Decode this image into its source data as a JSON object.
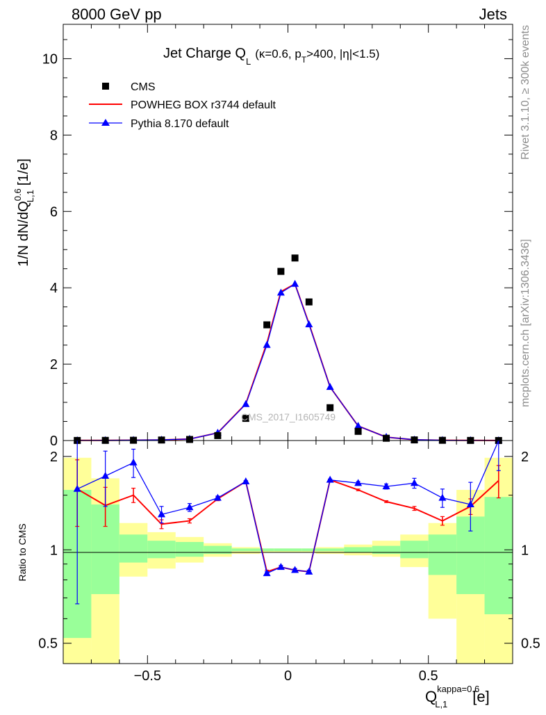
{
  "header": {
    "left": "8000 GeV pp",
    "right": "Jets"
  },
  "side_labels": {
    "top": "Rivet 3.1.10, ≥ 300k events",
    "bottom": "mcplots.cern.ch [arXiv:1306.3436]"
  },
  "watermark": "CMS_2017_I1605749",
  "colors": {
    "data": "#000000",
    "powheg": "#ff0000",
    "pythia": "#0000ff",
    "band_outer": "#ffff99",
    "band_inner": "#99ff99"
  },
  "chart_data": [
    {
      "type": "line",
      "panel": "main",
      "title_main": "Jet Charge Q",
      "title_sub": "L",
      "title_rest": "(κ=0.6, p",
      "title_rest_sub": "T",
      "title_tail": ">400, |η|<1.5)",
      "ylabel": "1/N dN/dQ",
      "ylabel_sup": "0.6",
      "ylabel_sub": "L,1",
      "ylabel_unit": "[1/e]",
      "xlim": [
        -0.8,
        0.8
      ],
      "ylim": [
        0,
        10.9
      ],
      "yticks": [
        0,
        2,
        4,
        6,
        8,
        10
      ],
      "grid": false,
      "legend_position": "top-left",
      "x": [
        -0.75,
        -0.65,
        -0.55,
        -0.45,
        -0.35,
        -0.25,
        -0.15,
        -0.075,
        -0.025,
        0.025,
        0.075,
        0.15,
        0.25,
        0.35,
        0.45,
        0.55,
        0.65,
        0.75
      ],
      "series": [
        {
          "name": "CMS",
          "style": "markers",
          "values": [
            0.002,
            0.004,
            0.007,
            0.013,
            0.028,
            0.13,
            0.58,
            3.03,
            4.43,
            4.78,
            3.63,
            0.86,
            0.24,
            0.06,
            0.016,
            0.006,
            0.003,
            0.001
          ]
        },
        {
          "name": "POWHEG BOX r3744 default",
          "style": "line",
          "values": [
            0.003,
            0.006,
            0.01,
            0.017,
            0.04,
            0.2,
            0.96,
            2.55,
            3.9,
            4.1,
            3.06,
            1.4,
            0.38,
            0.09,
            0.02,
            0.008,
            0.004,
            0.002
          ]
        },
        {
          "name": "Pythia 8.170 default",
          "style": "line-triangles",
          "values": [
            0.003,
            0.006,
            0.011,
            0.018,
            0.04,
            0.2,
            0.95,
            2.5,
            3.87,
            4.1,
            3.04,
            1.4,
            0.38,
            0.09,
            0.021,
            0.008,
            0.004,
            0.002
          ]
        }
      ]
    },
    {
      "type": "line",
      "panel": "ratio",
      "ylabel": "Ratio to CMS",
      "xlabel": "Q",
      "xlabel_sup": "kappa=0.6",
      "xlabel_sub": "L,1",
      "xlabel_unit": "[e]",
      "xlim": [
        -0.8,
        0.8
      ],
      "ylim": [
        0.43,
        2.25
      ],
      "ylog": true,
      "yticks": [
        0.5,
        1,
        2
      ],
      "ytick_labels": [
        "0.5",
        "1",
        "2"
      ],
      "xticks": [
        -0.5,
        0,
        0.5
      ],
      "xtick_labels": [
        "−0.5",
        "0",
        "0.5"
      ],
      "bins": [
        -0.8,
        -0.7,
        -0.6,
        -0.5,
        -0.4,
        -0.3,
        -0.2,
        -0.1,
        -0.05,
        0,
        0.05,
        0.1,
        0.2,
        0.3,
        0.4,
        0.5,
        0.6,
        0.7,
        0.8
      ],
      "band_outer": {
        "low": [
          0.43,
          0.43,
          0.82,
          0.87,
          0.91,
          0.95,
          0.97,
          0.98,
          0.98,
          0.98,
          0.98,
          0.97,
          0.96,
          0.95,
          0.88,
          0.6,
          0.43,
          0.43
        ],
        "high": [
          1.98,
          1.7,
          1.22,
          1.14,
          1.1,
          1.05,
          1.02,
          1.01,
          1.01,
          1.01,
          1.01,
          1.02,
          1.04,
          1.07,
          1.12,
          1.22,
          1.56,
          1.98
        ]
      },
      "band_inner": {
        "low": [
          0.52,
          0.72,
          0.91,
          0.94,
          0.95,
          0.97,
          0.99,
          0.99,
          0.99,
          0.99,
          0.99,
          0.99,
          0.98,
          0.97,
          0.94,
          0.83,
          0.72,
          0.62
        ],
        "high": [
          1.56,
          1.4,
          1.12,
          1.07,
          1.06,
          1.03,
          1.01,
          1.01,
          1.01,
          1.01,
          1.01,
          1.01,
          1.02,
          1.03,
          1.07,
          1.12,
          1.28,
          1.48
        ]
      },
      "x": [
        -0.75,
        -0.65,
        -0.55,
        -0.45,
        -0.35,
        -0.25,
        -0.15,
        -0.075,
        -0.025,
        0.025,
        0.075,
        0.15,
        0.25,
        0.35,
        0.45,
        0.55,
        0.65,
        0.75
      ],
      "series": [
        {
          "name": "POWHEG BOX r3744 default",
          "values": [
            1.57,
            1.39,
            1.5,
            1.21,
            1.24,
            1.46,
            1.66,
            0.85,
            0.88,
            0.86,
            0.85,
            1.68,
            1.56,
            1.43,
            1.36,
            1.24,
            1.38,
            1.67
          ],
          "err": [
            0.38,
            0.2,
            0.08,
            0.04,
            0.02,
            0.02,
            0.01,
            0.01,
            0.01,
            0.01,
            0.01,
            0.01,
            0.01,
            0.01,
            0.02,
            0.04,
            0.08,
            0.2
          ]
        },
        {
          "name": "Pythia 8.170 default",
          "values": [
            1.57,
            1.73,
            1.91,
            1.3,
            1.37,
            1.47,
            1.66,
            0.84,
            0.88,
            0.86,
            0.85,
            1.68,
            1.64,
            1.6,
            1.64,
            1.47,
            1.4,
            2.3
          ],
          "err": [
            0.9,
            0.35,
            0.2,
            0.08,
            0.04,
            0.02,
            0.01,
            0.01,
            0.01,
            0.01,
            0.01,
            0.01,
            0.02,
            0.03,
            0.06,
            0.1,
            0.25,
            0.5
          ]
        }
      ]
    }
  ]
}
